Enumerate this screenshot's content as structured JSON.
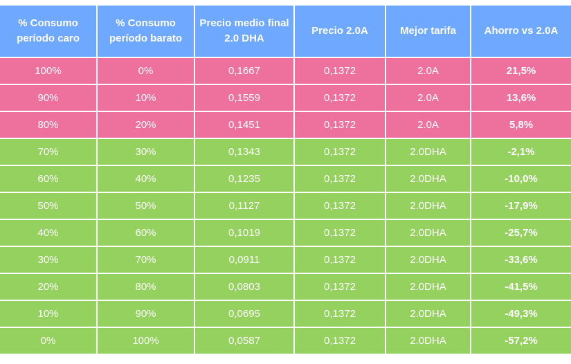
{
  "table": {
    "headers": [
      "% Consumo período caro",
      "% Consumo período barato",
      "Precio medio final 2.0 DHA",
      "Precio 2.0A",
      "Mejor tarifa",
      "Ahorro vs 2.0A"
    ],
    "colors": {
      "header": "#6fa8ff",
      "pink": "#ee709c",
      "green": "#95d15f"
    },
    "rows": [
      {
        "color": "pink",
        "cells": [
          "100%",
          "0%",
          "0,1667",
          "0,1372",
          "2.0A",
          "21,5%"
        ]
      },
      {
        "color": "pink",
        "cells": [
          "90%",
          "10%",
          "0,1559",
          "0,1372",
          "2.0A",
          "13,6%"
        ]
      },
      {
        "color": "pink",
        "cells": [
          "80%",
          "20%",
          "0,1451",
          "0,1372",
          "2.0A",
          "5,8%"
        ]
      },
      {
        "color": "green",
        "cells": [
          "70%",
          "30%",
          "0,1343",
          "0,1372",
          "2.0DHA",
          "-2,1%"
        ]
      },
      {
        "color": "green",
        "cells": [
          "60%",
          "40%",
          "0,1235",
          "0,1372",
          "2.0DHA",
          "-10,0%"
        ]
      },
      {
        "color": "green",
        "cells": [
          "50%",
          "50%",
          "0,1127",
          "0,1372",
          "2.0DHA",
          "-17,9%"
        ]
      },
      {
        "color": "green",
        "cells": [
          "40%",
          "60%",
          "0,1019",
          "0,1372",
          "2.0DHA",
          "-25,7%"
        ]
      },
      {
        "color": "green",
        "cells": [
          "30%",
          "70%",
          "0,0911",
          "0,1372",
          "2.0DHA",
          "-33,6%"
        ]
      },
      {
        "color": "green",
        "cells": [
          "20%",
          "80%",
          "0,0803",
          "0,1372",
          "2.0DHA",
          "-41,5%"
        ]
      },
      {
        "color": "green",
        "cells": [
          "10%",
          "90%",
          "0,0695",
          "0,1372",
          "2.0DHA",
          "-49,3%"
        ]
      },
      {
        "color": "green",
        "cells": [
          "0%",
          "100%",
          "0,0587",
          "0,1372",
          "2.0DHA",
          "-57,2%"
        ]
      }
    ]
  }
}
